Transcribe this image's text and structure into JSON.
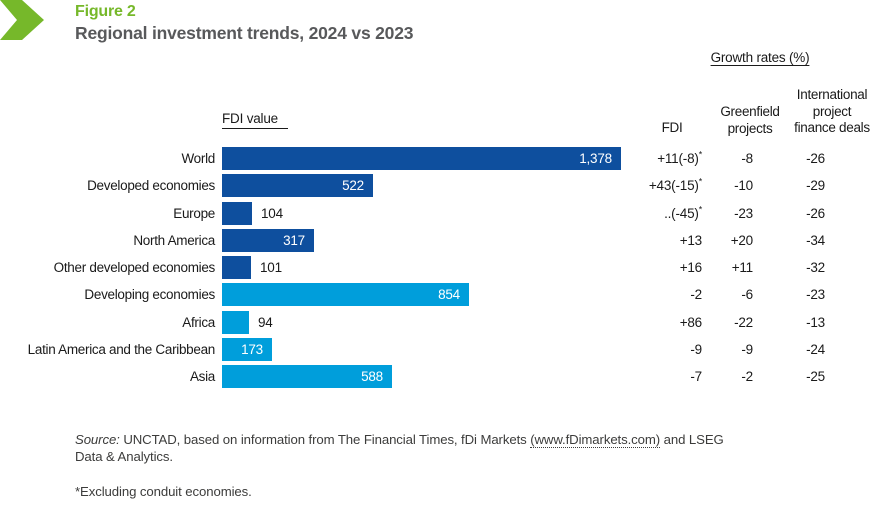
{
  "figure": {
    "label": "Figure 2",
    "title": "Regional investment trends, 2024 vs 2023"
  },
  "table_headers": {
    "fdi_value": "FDI value",
    "growth_rates": "Growth rates (%)",
    "fdi": "FDI",
    "greenfield": [
      "Greenfield",
      "projects"
    ],
    "ipf": [
      "International",
      "project",
      "finance deals"
    ]
  },
  "chart_data": {
    "type": "bar",
    "orientation": "horizontal",
    "title": "Regional investment trends, 2024 vs 2023",
    "value_axis_label": "FDI value",
    "xlim": [
      0,
      1378
    ],
    "grid": false,
    "legend": false,
    "colors": {
      "developed": "#0E4F9E",
      "developing": "#009EDB"
    },
    "growth_rate_columns": [
      "FDI",
      "Greenfield projects",
      "International project finance deals"
    ],
    "rows": [
      {
        "label": "World",
        "value": 1378,
        "value_label": "1,378",
        "group": "developed",
        "fdi": "+11(-8)",
        "fdi_sup": "*",
        "greenfield": "-8",
        "ipf": "-26"
      },
      {
        "label": "Developed economies",
        "value": 522,
        "value_label": "522",
        "group": "developed",
        "fdi": "+43(-15)",
        "fdi_sup": "*",
        "greenfield": "-10",
        "ipf": "-29"
      },
      {
        "label": "Europe",
        "value": 104,
        "value_label": "104",
        "group": "developed",
        "fdi": "..(-45)",
        "fdi_sup": "*",
        "greenfield": "-23",
        "ipf": "-26"
      },
      {
        "label": "North America",
        "value": 317,
        "value_label": "317",
        "group": "developed",
        "fdi": "+13",
        "fdi_sup": "",
        "greenfield": "+20",
        "ipf": "-34"
      },
      {
        "label": "Other developed economies",
        "value": 101,
        "value_label": "101",
        "group": "developed",
        "fdi": "+16",
        "fdi_sup": "",
        "greenfield": "+11",
        "ipf": "-32"
      },
      {
        "label": "Developing economies",
        "value": 854,
        "value_label": "854",
        "group": "developing",
        "fdi": "-2",
        "fdi_sup": "",
        "greenfield": "-6",
        "ipf": "-23"
      },
      {
        "label": "Africa",
        "value": 94,
        "value_label": "94",
        "group": "developing",
        "fdi": "+86",
        "fdi_sup": "",
        "greenfield": "-22",
        "ipf": "-13"
      },
      {
        "label": "Latin America and the Caribbean",
        "value": 173,
        "value_label": "173",
        "group": "developing",
        "fdi": "-9",
        "fdi_sup": "",
        "greenfield": "-9",
        "ipf": "-24"
      },
      {
        "label": "Asia",
        "value": 588,
        "value_label": "588",
        "group": "developing",
        "fdi": "-7",
        "fdi_sup": "",
        "greenfield": "-2",
        "ipf": "-25"
      }
    ]
  },
  "footer": {
    "source_label": "Source:",
    "source_pre": " UNCTAD, based on information from The Financial Times, fDi Markets ",
    "source_link": "(www.fDimarkets.com)",
    "source_post": " and LSEG",
    "source_line2": "Data & Analytics.",
    "footnote": "*Excluding conduit economies."
  },
  "accent_colors": {
    "green": "#76B82A",
    "title_gray": "#58595B",
    "bar_dark_blue": "#0E4F9E",
    "bar_light_blue": "#009EDB"
  }
}
